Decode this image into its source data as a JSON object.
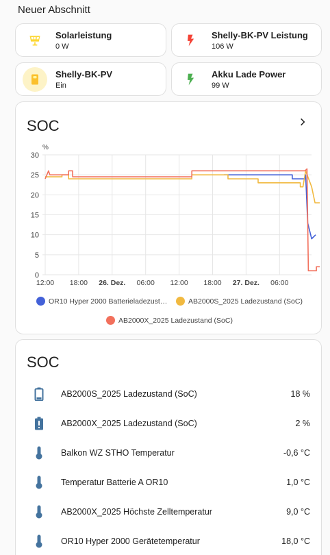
{
  "section": {
    "title": "Neuer Abschnitt"
  },
  "tiles": [
    {
      "name": "Solarleistung",
      "state": "0 W",
      "icon": "solar-panel-icon",
      "color": "#fdd835"
    },
    {
      "name": "Shelly-BK-PV Leistung",
      "state": "106 W",
      "icon": "flash-icon",
      "color": "#f44336"
    },
    {
      "name": "Shelly-BK-PV",
      "state": "Ein",
      "icon": "power-plug-icon",
      "color": "#fdd835"
    },
    {
      "name": "Akku Lade Power",
      "state": "99 W",
      "icon": "flash-icon",
      "color": "#4caf50"
    }
  ],
  "graph_card": {
    "title": "SOC"
  },
  "chart_data": {
    "type": "line",
    "ylabel": "%",
    "ylim": [
      0,
      30
    ],
    "yticks": [
      "0",
      "5",
      "10",
      "15",
      "20",
      "25",
      "30"
    ],
    "xticks": [
      "12:00",
      "18:00",
      "26. Dez.",
      "06:00",
      "12:00",
      "18:00",
      "27. Dez.",
      "06:00"
    ],
    "x_hours": [
      0,
      40
    ],
    "series": [
      {
        "name": "OR10 Hyper 2000 Batterieladezust…",
        "color": "#4361d8",
        "points": [
          [
            26.7,
            25
          ],
          [
            36.9,
            25
          ],
          [
            36.9,
            24
          ],
          [
            38.9,
            24
          ],
          [
            38.9,
            25
          ],
          [
            39.2,
            13
          ],
          [
            39.8,
            9
          ],
          [
            40.4,
            10
          ]
        ]
      },
      {
        "name": "AB2000S_2025 Ladezustand (SoC)",
        "color": "#f1b940",
        "points": [
          [
            0,
            24.5
          ],
          [
            2.5,
            24.5
          ],
          [
            2.5,
            25
          ],
          [
            3.5,
            25
          ],
          [
            3.5,
            24
          ],
          [
            21.9,
            24
          ],
          [
            21.9,
            25
          ],
          [
            27.3,
            25
          ],
          [
            27.3,
            24
          ],
          [
            31.8,
            24
          ],
          [
            31.8,
            23
          ],
          [
            38.1,
            23
          ],
          [
            38.1,
            22
          ],
          [
            38.5,
            22
          ],
          [
            38.9,
            26
          ],
          [
            39.8,
            22
          ],
          [
            40.3,
            18
          ],
          [
            41,
            18
          ]
        ]
      },
      {
        "name": "AB2000X_2025 Ladezustand (SoC)",
        "color": "#f2705c",
        "points": [
          [
            0,
            24
          ],
          [
            0.5,
            26
          ],
          [
            0.7,
            25
          ],
          [
            3.5,
            25
          ],
          [
            3.5,
            26
          ],
          [
            4.1,
            26
          ],
          [
            4.1,
            24.5
          ],
          [
            21.9,
            24.5
          ],
          [
            21.9,
            26
          ],
          [
            38.8,
            26
          ],
          [
            39.1,
            26.5
          ],
          [
            39.3,
            1
          ],
          [
            40.5,
            1
          ],
          [
            40.5,
            2
          ],
          [
            41,
            2
          ]
        ]
      }
    ]
  },
  "entities_card": {
    "title": "SOC",
    "rows": [
      {
        "name": "AB2000S_2025 Ladezustand (SoC)",
        "value": "18 %",
        "icon": "battery-icon"
      },
      {
        "name": "AB2000X_2025 Ladezustand (SoC)",
        "value": "2 %",
        "icon": "battery-alert-icon"
      },
      {
        "name": "Balkon WZ STHO Temperatur",
        "value": "-0,6 °C",
        "icon": "thermometer-icon"
      },
      {
        "name": "Temperatur Batterie A OR10",
        "value": "1,0 °C",
        "icon": "thermometer-icon"
      },
      {
        "name": "AB2000X_2025 Höchste Zelltemperatur",
        "value": "9,0 °C",
        "icon": "thermometer-icon"
      },
      {
        "name": "OR10 Hyper 2000 Gerätetemperatur",
        "value": "18,0 °C",
        "icon": "thermometer-icon"
      }
    ]
  }
}
